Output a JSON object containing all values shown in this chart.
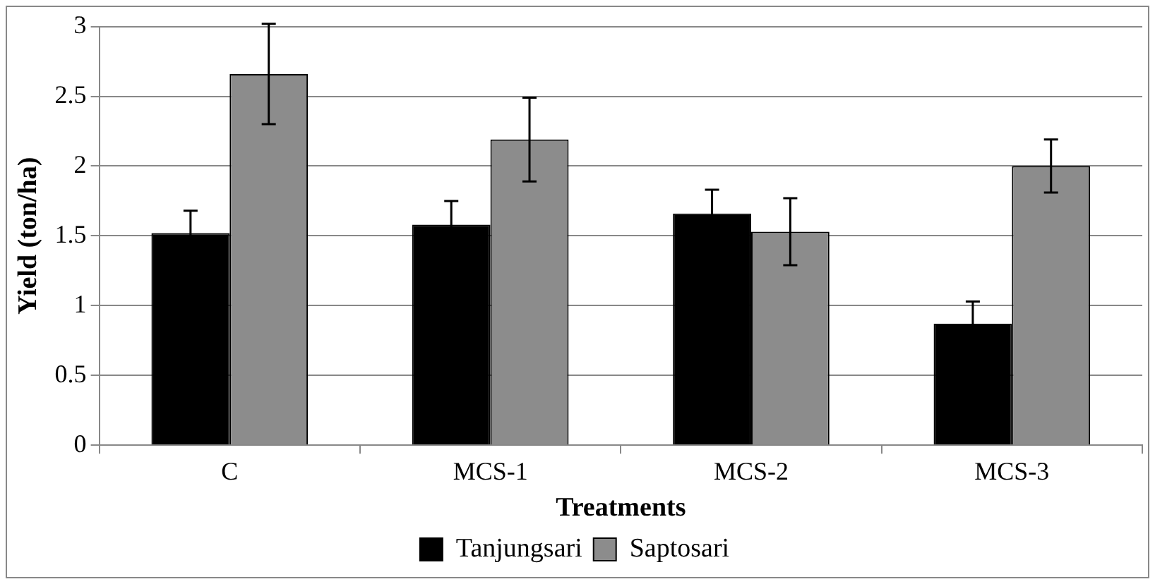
{
  "chart_data": {
    "type": "bar",
    "xlabel": "Treatments",
    "ylabel": "Yield (ton/ha)",
    "categories": [
      "C",
      "MCS-1",
      "MCS-2",
      "MCS-3"
    ],
    "series": [
      {
        "name": "Tanjungsari",
        "color": "#000000",
        "values": [
          1.52,
          1.58,
          1.66,
          0.87
        ],
        "errors": [
          0.16,
          0.17,
          0.17,
          0.16
        ]
      },
      {
        "name": "Saptosari",
        "color": "#8c8c8c",
        "values": [
          2.66,
          2.19,
          1.53,
          2.0
        ],
        "errors": [
          0.36,
          0.3,
          0.24,
          0.19
        ]
      }
    ],
    "ylim": [
      0,
      3
    ],
    "yticks": [
      0,
      0.5,
      1,
      1.5,
      2,
      2.5,
      3
    ],
    "grid": "y",
    "legend": "bottom"
  }
}
